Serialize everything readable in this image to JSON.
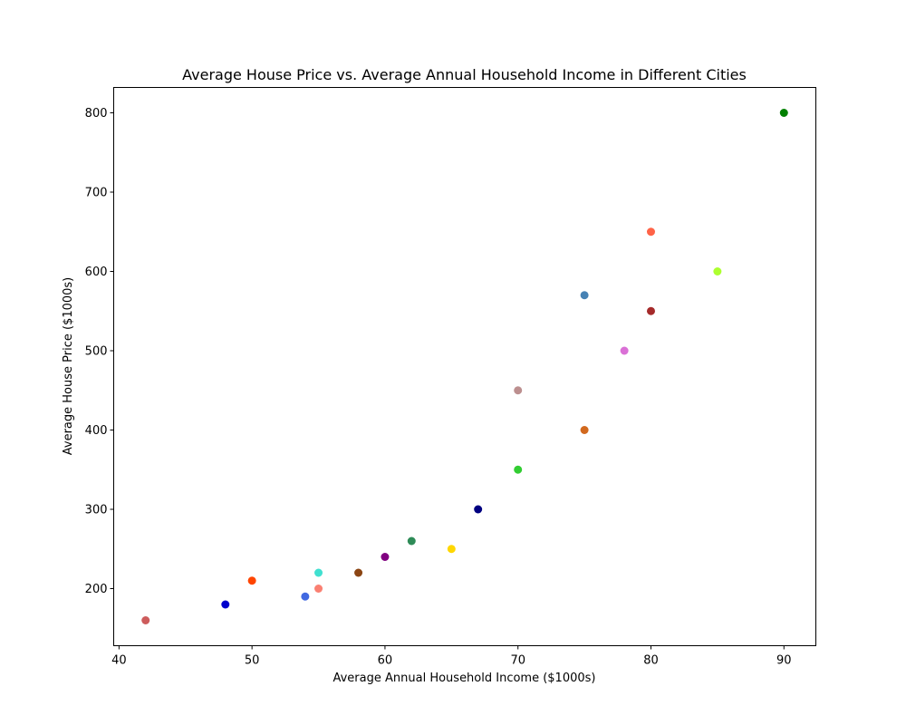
{
  "chart_data": {
    "type": "scatter",
    "title": "Average House Price vs. Average Annual Household Income in Different Cities",
    "xlabel": "Average Annual Household Income ($1000s)",
    "ylabel": "Average House Price ($1000s)",
    "xlim": [
      39.6,
      92.4
    ],
    "ylim": [
      128,
      832
    ],
    "xticks": [
      40,
      50,
      60,
      70,
      80,
      90
    ],
    "yticks": [
      200,
      300,
      400,
      500,
      600,
      700,
      800
    ],
    "grid": false,
    "points": [
      {
        "x": 42,
        "y": 160,
        "color": "#cd5c5c"
      },
      {
        "x": 48,
        "y": 180,
        "color": "#0000cd"
      },
      {
        "x": 50,
        "y": 210,
        "color": "#ff4500"
      },
      {
        "x": 54,
        "y": 190,
        "color": "#4169e1"
      },
      {
        "x": 55,
        "y": 200,
        "color": "#fa8072"
      },
      {
        "x": 55,
        "y": 220,
        "color": "#40e0d0"
      },
      {
        "x": 58,
        "y": 220,
        "color": "#8b4513"
      },
      {
        "x": 60,
        "y": 240,
        "color": "#800080"
      },
      {
        "x": 62,
        "y": 260,
        "color": "#2e8b57"
      },
      {
        "x": 65,
        "y": 250,
        "color": "#ffd700"
      },
      {
        "x": 67,
        "y": 300,
        "color": "#000080"
      },
      {
        "x": 70,
        "y": 350,
        "color": "#32cd32"
      },
      {
        "x": 70,
        "y": 450,
        "color": "#bc8f8f"
      },
      {
        "x": 75,
        "y": 400,
        "color": "#d2691e"
      },
      {
        "x": 75,
        "y": 570,
        "color": "#4682b4"
      },
      {
        "x": 78,
        "y": 500,
        "color": "#da70d6"
      },
      {
        "x": 80,
        "y": 550,
        "color": "#a52a2a"
      },
      {
        "x": 80,
        "y": 650,
        "color": "#ff6347"
      },
      {
        "x": 85,
        "y": 600,
        "color": "#adff2f"
      },
      {
        "x": 90,
        "y": 800,
        "color": "#008000"
      }
    ]
  }
}
